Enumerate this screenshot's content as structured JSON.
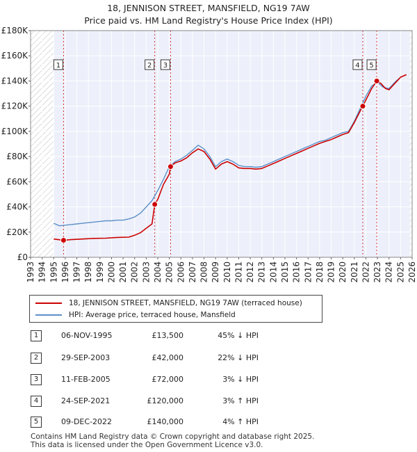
{
  "title": {
    "line1": "18, JENNISON STREET, MANSFIELD, NG19 7AW",
    "line2": "Price paid vs. HM Land Registry's House Price Index (HPI)"
  },
  "legend": {
    "property_label": "18, JENNISON STREET, MANSFIELD, NG19 7AW (terraced house)",
    "hpi_label": "HPI: Average price, terraced house, Mansfield"
  },
  "colors": {
    "property": "#cc0000",
    "hpi": "#5b8fc9",
    "plot_bg": "#edf0fa",
    "hatch": "#bbbbbb",
    "grid": "#ffffff"
  },
  "sales": [
    {
      "num": "1",
      "date": "06-NOV-1995",
      "price": "£13,500",
      "hpi_delta": "45% ↓ HPI"
    },
    {
      "num": "2",
      "date": "29-SEP-2003",
      "price": "£42,000",
      "hpi_delta": "22% ↓ HPI"
    },
    {
      "num": "3",
      "date": "11-FEB-2005",
      "price": "£72,000",
      "hpi_delta": "3% ↓ HPI"
    },
    {
      "num": "4",
      "date": "24-SEP-2021",
      "price": "£120,000",
      "hpi_delta": "3% ↑ HPI"
    },
    {
      "num": "5",
      "date": "09-DEC-2022",
      "price": "£140,000",
      "hpi_delta": "4% ↑ HPI"
    }
  ],
  "footer": {
    "line1": "Contains HM Land Registry data © Crown copyright and database right 2025.",
    "line2": "This data is licensed under the Open Government Licence v3.0."
  },
  "chart_data": {
    "type": "line",
    "title": "18, JENNISON STREET, MANSFIELD, NG19 7AW",
    "subtitle": "Price paid vs. HM Land Registry's House Price Index (HPI)",
    "xlabel": "",
    "ylabel": "",
    "xlim": [
      1993,
      2026
    ],
    "ylim": [
      0,
      180000
    ],
    "x_ticks": [
      "1993",
      "1994",
      "1995",
      "1996",
      "1997",
      "1998",
      "1999",
      "2000",
      "2001",
      "2002",
      "2003",
      "2004",
      "2005",
      "2006",
      "2007",
      "2008",
      "2009",
      "2010",
      "2011",
      "2012",
      "2013",
      "2014",
      "2015",
      "2016",
      "2017",
      "2018",
      "2019",
      "2020",
      "2021",
      "2022",
      "2023",
      "2024",
      "2025",
      "2026"
    ],
    "y_ticks": [
      {
        "value": 0,
        "label": "£0"
      },
      {
        "value": 20000,
        "label": "£20K"
      },
      {
        "value": 40000,
        "label": "£40K"
      },
      {
        "value": 60000,
        "label": "£60K"
      },
      {
        "value": 80000,
        "label": "£80K"
      },
      {
        "value": 100000,
        "label": "£100K"
      },
      {
        "value": 120000,
        "label": "£120K"
      },
      {
        "value": 140000,
        "label": "£140K"
      },
      {
        "value": 160000,
        "label": "£160K"
      },
      {
        "value": 180000,
        "label": "£180K"
      }
    ],
    "hatched_before": 1995.0,
    "hatched_after": 2025.8,
    "series": [
      {
        "name": "HPI: Average price, terraced house, Mansfield",
        "x": [
          1995.0,
          1995.5,
          1996.0,
          1996.5,
          1997.0,
          1997.5,
          1998.0,
          1998.5,
          1999.0,
          1999.5,
          2000.0,
          2000.5,
          2001.0,
          2001.5,
          2002.0,
          2002.5,
          2003.0,
          2003.5,
          2004.0,
          2004.5,
          2005.0,
          2005.5,
          2006.0,
          2006.5,
          2007.0,
          2007.5,
          2008.0,
          2008.5,
          2009.0,
          2009.5,
          2010.0,
          2010.5,
          2011.0,
          2011.5,
          2012.0,
          2012.5,
          2013.0,
          2013.5,
          2014.0,
          2014.5,
          2015.0,
          2015.5,
          2016.0,
          2016.5,
          2017.0,
          2017.5,
          2018.0,
          2018.5,
          2019.0,
          2019.5,
          2020.0,
          2020.5,
          2021.0,
          2021.5,
          2022.0,
          2022.5,
          2023.0,
          2023.5,
          2024.0,
          2024.5,
          2025.0,
          2025.5
        ],
        "values": [
          27000,
          25000,
          25500,
          26000,
          26500,
          27000,
          27500,
          28000,
          28500,
          29000,
          29000,
          29500,
          29500,
          30500,
          32000,
          35000,
          40000,
          45000,
          53000,
          62000,
          72000,
          76000,
          78000,
          81000,
          85000,
          89000,
          86000,
          80000,
          72000,
          76000,
          78000,
          76000,
          73000,
          72000,
          72000,
          71500,
          72000,
          74000,
          76000,
          78000,
          80000,
          82000,
          84000,
          86000,
          88000,
          90000,
          92000,
          93000,
          95000,
          97000,
          99000,
          100000,
          108000,
          118000,
          128000,
          136000,
          139000,
          135000,
          134000,
          139000,
          143000,
          145000
        ]
      },
      {
        "name": "18, JENNISON STREET, MANSFIELD, NG19 7AW (terraced house)",
        "x": [
          1995.0,
          1995.85,
          1996.5,
          1997.5,
          1998.5,
          1999.5,
          2000.5,
          2001.5,
          2002.0,
          2002.5,
          2003.0,
          2003.5,
          2003.74,
          2004.0,
          2004.5,
          2005.0,
          2005.11,
          2005.5,
          2006.0,
          2006.5,
          2007.0,
          2007.5,
          2008.0,
          2008.5,
          2009.0,
          2009.5,
          2010.0,
          2010.5,
          2011.0,
          2011.5,
          2012.0,
          2012.5,
          2013.0,
          2013.5,
          2014.0,
          2014.5,
          2015.0,
          2015.5,
          2016.0,
          2016.5,
          2017.0,
          2017.5,
          2018.0,
          2018.5,
          2019.0,
          2019.5,
          2020.0,
          2020.5,
          2021.0,
          2021.5,
          2021.73,
          2022.0,
          2022.5,
          2022.94,
          2023.3,
          2023.7,
          2024.0,
          2024.5,
          2025.0,
          2025.5
        ],
        "values": [
          14500,
          13500,
          14000,
          14500,
          15000,
          15200,
          15800,
          16000,
          17500,
          19500,
          23000,
          26500,
          42000,
          46000,
          58000,
          66000,
          72000,
          75000,
          76500,
          79000,
          83000,
          86000,
          84000,
          78000,
          70000,
          74000,
          76000,
          74000,
          71000,
          70500,
          70500,
          70000,
          70500,
          72500,
          74500,
          76500,
          78500,
          80500,
          82500,
          84500,
          86500,
          88500,
          90500,
          92000,
          93500,
          95500,
          97500,
          99000,
          107000,
          116000,
          120000,
          125000,
          134000,
          140000,
          138000,
          134000,
          133000,
          138000,
          143000,
          145000
        ]
      }
    ],
    "sales": [
      {
        "label": "1",
        "x": 1995.85,
        "value": 13500
      },
      {
        "label": "2",
        "x": 2003.74,
        "value": 42000
      },
      {
        "label": "3",
        "x": 2005.11,
        "value": 72000
      },
      {
        "label": "4",
        "x": 2021.73,
        "value": 120000
      },
      {
        "label": "5",
        "x": 2022.94,
        "value": 140000
      }
    ]
  }
}
